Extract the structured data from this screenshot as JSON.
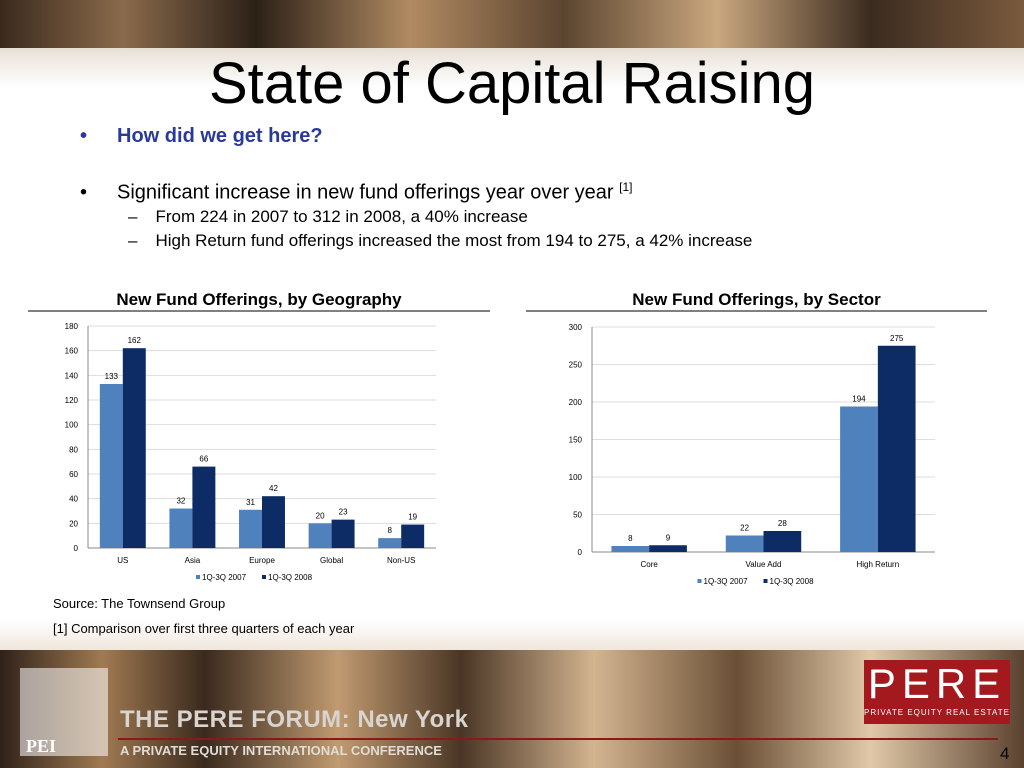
{
  "title": "State of Capital Raising",
  "bullets": [
    {
      "text": "How did we get here?"
    },
    {
      "text": "Significant increase in new fund offerings year over year",
      "note": "[1]",
      "sub": [
        "From 224 in 2007 to 312 in 2008, a 40% increase",
        "High Return fund offerings increased the most from 194 to 275, a 42% increase"
      ]
    }
  ],
  "chart_data": [
    {
      "type": "bar",
      "title": "New Fund Offerings, by Geography",
      "categories": [
        "US",
        "Asia",
        "Europe",
        "Global",
        "Non-US"
      ],
      "series": [
        {
          "name": "1Q-3Q 2007",
          "color": "#4f81bd",
          "values": [
            133,
            32,
            31,
            20,
            8
          ]
        },
        {
          "name": "1Q-3Q 2008",
          "color": "#0d2c66",
          "values": [
            162,
            66,
            42,
            23,
            19
          ]
        }
      ],
      "ylim": [
        0,
        180
      ],
      "yticks": [
        0,
        20,
        40,
        60,
        80,
        100,
        120,
        140,
        160,
        180
      ],
      "grid": true,
      "legend": "bottom"
    },
    {
      "type": "bar",
      "title": "New Fund Offerings, by Sector",
      "categories": [
        "Core",
        "Value Add",
        "High Return"
      ],
      "series": [
        {
          "name": "1Q-3Q 2007",
          "color": "#4f81bd",
          "values": [
            8,
            22,
            194
          ]
        },
        {
          "name": "1Q-3Q 2008",
          "color": "#0d2c66",
          "values": [
            9,
            28,
            275
          ]
        }
      ],
      "ylim": [
        0,
        300
      ],
      "yticks": [
        0,
        50,
        100,
        150,
        200,
        250,
        300
      ],
      "grid": true,
      "legend": "bottom"
    }
  ],
  "source": "Source:  The Townsend Group",
  "footnote": "[1]  Comparison over first three quarters of each year",
  "footer": {
    "pei": "PEI",
    "event": "THE PERE FORUM: New York",
    "subtitle": "A PRIVATE EQUITY INTERNATIONAL CONFERENCE",
    "logo": "PERE",
    "logo_sub": "PRIVATE EQUITY REAL ESTATE",
    "page": "4"
  }
}
